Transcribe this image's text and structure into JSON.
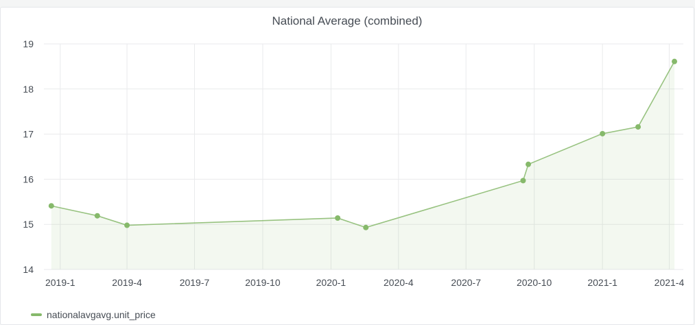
{
  "panel": {
    "title": "National Average (combined)"
  },
  "chart_data": {
    "type": "line",
    "title": "National Average (combined)",
    "xlabel": "",
    "ylabel": "",
    "ylim": [
      14,
      19
    ],
    "xlim": [
      "2018-12-10",
      "2021-04-20"
    ],
    "grid": true,
    "fill_area": true,
    "legend_position": "bottom-left",
    "color": "#86b96b",
    "y_ticks": [
      14,
      15,
      16,
      17,
      18,
      19
    ],
    "x_ticks": [
      {
        "label": "2019-1",
        "date": "2019-01-01"
      },
      {
        "label": "2019-4",
        "date": "2019-04-01"
      },
      {
        "label": "2019-7",
        "date": "2019-07-01"
      },
      {
        "label": "2019-10",
        "date": "2019-10-01"
      },
      {
        "label": "2020-1",
        "date": "2020-01-01"
      },
      {
        "label": "2020-4",
        "date": "2020-04-01"
      },
      {
        "label": "2020-7",
        "date": "2020-07-01"
      },
      {
        "label": "2020-10",
        "date": "2020-10-01"
      },
      {
        "label": "2021-1",
        "date": "2021-01-01"
      },
      {
        "label": "2021-4",
        "date": "2021-04-01"
      }
    ],
    "series": [
      {
        "name": "nationalavgavg.unit_price",
        "points": [
          {
            "x": "2018-12-20",
            "y": 15.41
          },
          {
            "x": "2019-02-20",
            "y": 15.19
          },
          {
            "x": "2019-04-01",
            "y": 14.98
          },
          {
            "x": "2020-01-10",
            "y": 15.14
          },
          {
            "x": "2020-02-17",
            "y": 14.93
          },
          {
            "x": "2020-09-16",
            "y": 15.97
          },
          {
            "x": "2020-09-23",
            "y": 16.33
          },
          {
            "x": "2021-01-01",
            "y": 17.01
          },
          {
            "x": "2021-02-18",
            "y": 17.16
          },
          {
            "x": "2021-04-08",
            "y": 18.61
          }
        ]
      }
    ]
  }
}
